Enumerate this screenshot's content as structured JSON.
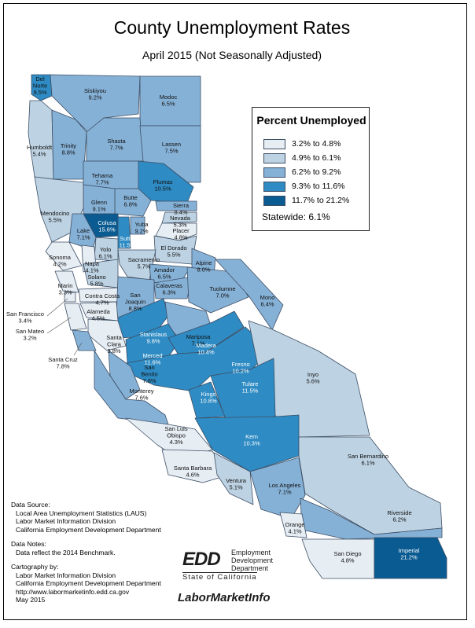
{
  "title": "County Unemployment Rates",
  "subtitle": "April 2015 (Not Seasonally Adjusted)",
  "colors": {
    "class1": "#e6edf3",
    "class2": "#bdd2e2",
    "class3": "#86b1d6",
    "class4": "#2e8bc3",
    "class5": "#0a5b92",
    "border": "#3d4f66"
  },
  "legend": {
    "title": "Percent Unemployed",
    "classes": [
      {
        "label": "3.2% to 4.8%",
        "class": 1
      },
      {
        "label": "4.9% to 6.1%",
        "class": 2
      },
      {
        "label": "6.2% to 9.2%",
        "class": 3
      },
      {
        "label": "9.3% to 11.6%",
        "class": 4
      },
      {
        "label": "11.7% to 21.2%",
        "class": 5
      }
    ],
    "statewide": "Statewide: 6.1%"
  },
  "counties": [
    {
      "name": "Del Norte",
      "rate": "9.5%",
      "class": 4
    },
    {
      "name": "Siskiyou",
      "rate": "9.2%",
      "class": 3
    },
    {
      "name": "Modoc",
      "rate": "6.5%",
      "class": 3
    },
    {
      "name": "Humboldt",
      "rate": "5.4%",
      "class": 2
    },
    {
      "name": "Trinity",
      "rate": "8.8%",
      "class": 3
    },
    {
      "name": "Shasta",
      "rate": "7.7%",
      "class": 3
    },
    {
      "name": "Lassen",
      "rate": "7.5%",
      "class": 3
    },
    {
      "name": "Tehama",
      "rate": "7.7%",
      "class": 3
    },
    {
      "name": "Plumas",
      "rate": "10.5%",
      "class": 4
    },
    {
      "name": "Butte",
      "rate": "6.8%",
      "class": 3
    },
    {
      "name": "Glenn",
      "rate": "9.1%",
      "class": 3
    },
    {
      "name": "Mendocino",
      "rate": "5.5%",
      "class": 2
    },
    {
      "name": "Colusa",
      "rate": "15.6%",
      "class": 5
    },
    {
      "name": "Sierra",
      "rate": "8.4%",
      "class": 3
    },
    {
      "name": "Nevada",
      "rate": "5.3%",
      "class": 2
    },
    {
      "name": "Yuba",
      "rate": "9.2%",
      "class": 3
    },
    {
      "name": "Sutter",
      "rate": "11.5%",
      "class": 4
    },
    {
      "name": "Placer",
      "rate": "4.8%",
      "class": 1
    },
    {
      "name": "Lake",
      "rate": "7.1%",
      "class": 3
    },
    {
      "name": "Yolo",
      "rate": "6.1%",
      "class": 2
    },
    {
      "name": "El Dorado",
      "rate": "5.5%",
      "class": 2
    },
    {
      "name": "Sonoma",
      "rate": "4.2%",
      "class": 1
    },
    {
      "name": "Napa",
      "rate": "4.1%",
      "class": 1
    },
    {
      "name": "Sacramento",
      "rate": "5.7%",
      "class": 2
    },
    {
      "name": "Alpine",
      "rate": "8.0%",
      "class": 3
    },
    {
      "name": "Amador",
      "rate": "6.5%",
      "class": 3
    },
    {
      "name": "Solano",
      "rate": "5.8%",
      "class": 2
    },
    {
      "name": "Marin",
      "rate": "3.3%",
      "class": 1
    },
    {
      "name": "Calaveras",
      "rate": "6.3%",
      "class": 3
    },
    {
      "name": "Contra Costa",
      "rate": "4.7%",
      "class": 1
    },
    {
      "name": "San Joaquin",
      "rate": "8.8%",
      "class": 3
    },
    {
      "name": "Tuolumne",
      "rate": "7.0%",
      "class": 3
    },
    {
      "name": "Mono",
      "rate": "6.4%",
      "class": 3
    },
    {
      "name": "San Francisco",
      "rate": "3.4%",
      "class": 1
    },
    {
      "name": "Alameda",
      "rate": "4.5%",
      "class": 1
    },
    {
      "name": "Stanislaus",
      "rate": "9.8%",
      "class": 4
    },
    {
      "name": "Mariposa",
      "rate": "7.1%",
      "class": 3
    },
    {
      "name": "San Mateo",
      "rate": "3.2%",
      "class": 1
    },
    {
      "name": "Santa Clara",
      "rate": "3.8%",
      "class": 1
    },
    {
      "name": "Merced",
      "rate": "11.6%",
      "class": 4
    },
    {
      "name": "Madera",
      "rate": "10.4%",
      "class": 4
    },
    {
      "name": "Santa Cruz",
      "rate": "7.8%",
      "class": 3
    },
    {
      "name": "Fresno",
      "rate": "10.2%",
      "class": 4
    },
    {
      "name": "San Benito",
      "rate": "7.8%",
      "class": 3
    },
    {
      "name": "Inyo",
      "rate": "5.6%",
      "class": 2
    },
    {
      "name": "Tulare",
      "rate": "11.5%",
      "class": 4
    },
    {
      "name": "Kings",
      "rate": "10.8%",
      "class": 4
    },
    {
      "name": "Monterey",
      "rate": "7.6%",
      "class": 3
    },
    {
      "name": "San Luis Obispo",
      "rate": "4.3%",
      "class": 1
    },
    {
      "name": "Kern",
      "rate": "10.3%",
      "class": 4
    },
    {
      "name": "San Bernardino",
      "rate": "6.1%",
      "class": 2
    },
    {
      "name": "Santa Barbara",
      "rate": "4.6%",
      "class": 1
    },
    {
      "name": "Ventura",
      "rate": "5.1%",
      "class": 2
    },
    {
      "name": "Los Angeles",
      "rate": "7.1%",
      "class": 3
    },
    {
      "name": "Riverside",
      "rate": "6.2%",
      "class": 3
    },
    {
      "name": "Orange",
      "rate": "4.1%",
      "class": 1
    },
    {
      "name": "San Diego",
      "rate": "4.8%",
      "class": 1
    },
    {
      "name": "Imperial",
      "rate": "21.2%",
      "class": 5
    }
  ],
  "notes": {
    "source_heading": "Data Source:",
    "source_lines": [
      "Local Area Unemployment Statistics (LAUS)",
      "Labor Market Information Division",
      "California Employment Development Department"
    ],
    "notes_heading": "Data Notes:",
    "notes_lines": [
      "Data reflect the 2014 Benchmark."
    ],
    "carto_heading": "Cartography by:",
    "carto_lines": [
      "Labor Market Information Division",
      "California Employment Development Department",
      "http://www.labormarketinfo.edd.ca.gov",
      "May 2015"
    ]
  },
  "logos": {
    "edd_mark": "EDD",
    "edd_lines": [
      "Employment",
      "Development",
      "Department"
    ],
    "edd_state": "State of California",
    "lmi": "LaborMarketInfo"
  }
}
